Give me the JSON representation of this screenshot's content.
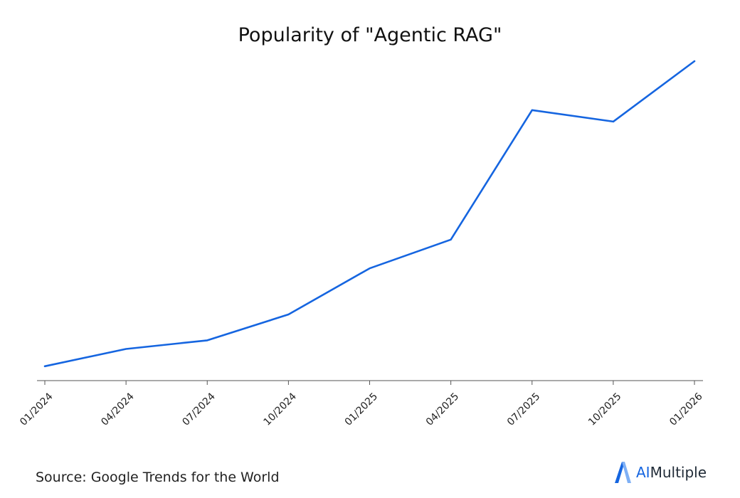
{
  "chart_data": {
    "type": "line",
    "title": "Popularity of \"Agentic RAG\"",
    "xlabel": "",
    "ylabel": "",
    "x": [
      "01/2024",
      "04/2024",
      "07/2024",
      "10/2024",
      "01/2025",
      "04/2025",
      "07/2025",
      "10/2025",
      "01/2026"
    ],
    "series": [
      {
        "values": [
          5,
          11,
          14,
          23,
          39,
          49,
          94,
          90,
          111
        ]
      }
    ],
    "ylim": [
      0,
      111
    ],
    "grid": false,
    "y_axis_visible": false,
    "line_color": "#1565e0"
  },
  "footer": {
    "source": "Source: Google Trends for the World"
  },
  "brand": {
    "ai": "AI",
    "multiple": "Multiple",
    "accent_color": "#1565e0"
  }
}
